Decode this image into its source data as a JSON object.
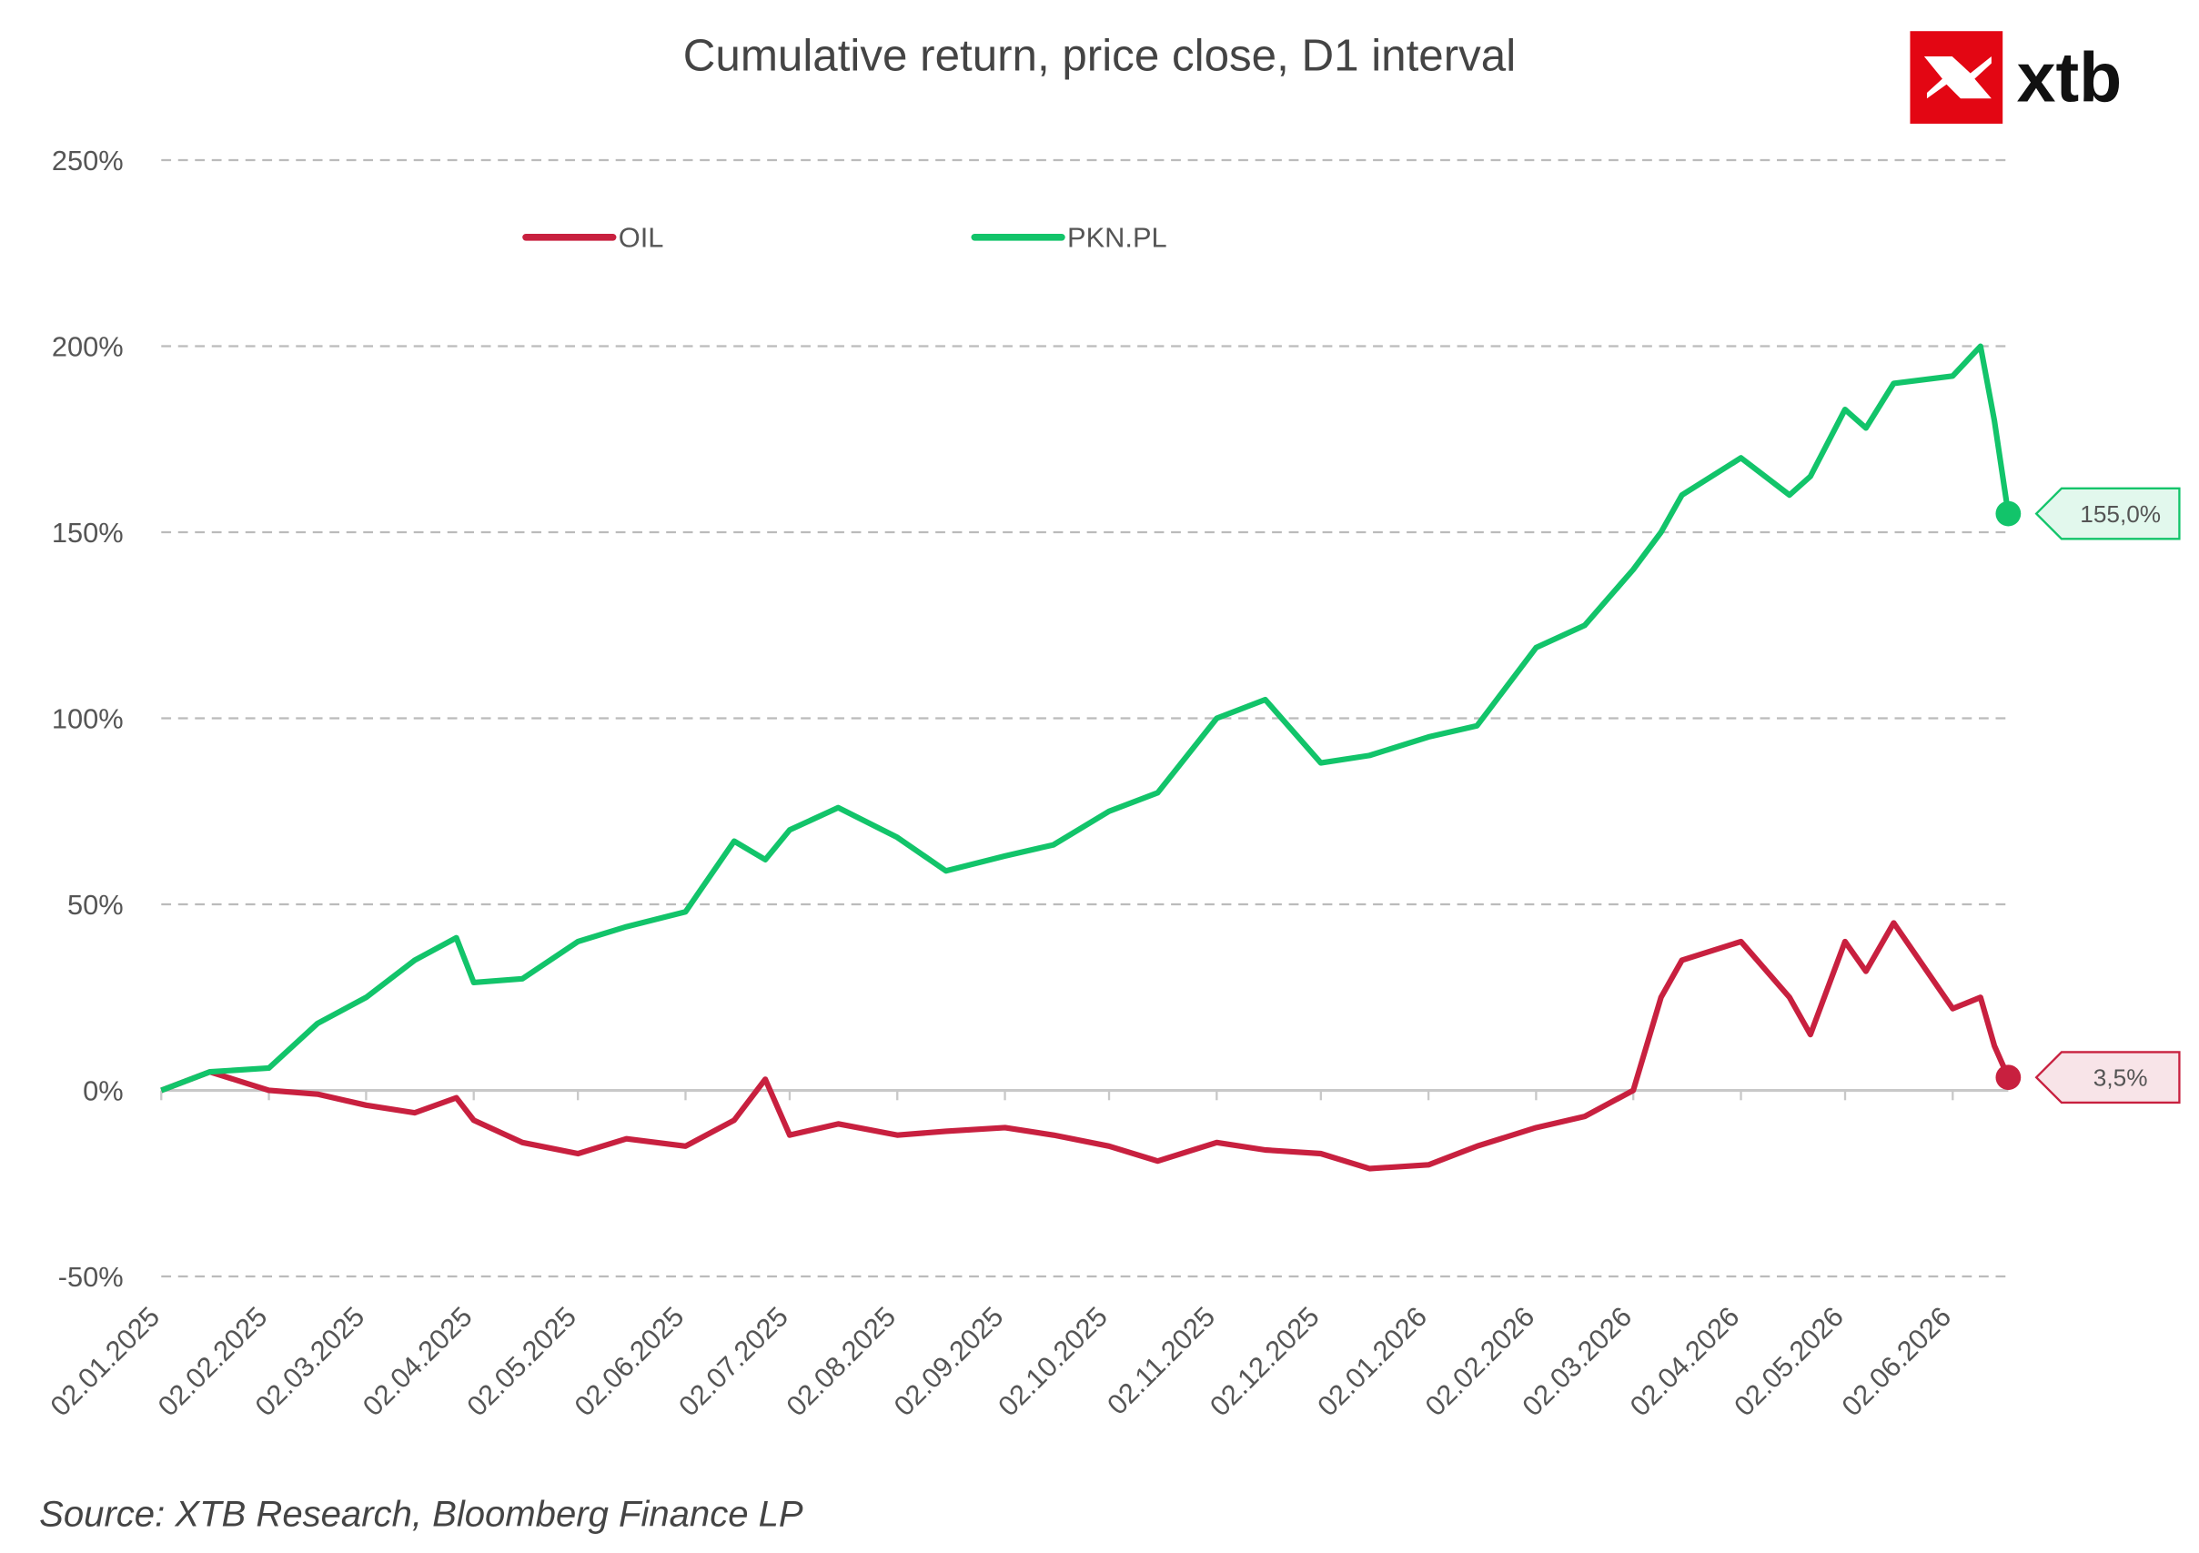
{
  "chart_data": {
    "type": "line",
    "title": "Cumulative return, price close, D1 interval",
    "source": "Source: XTB Research, Bloomberg Finance LP",
    "logo": "xtb",
    "legend": "top",
    "grid": true,
    "x": [
      "02.01.2025",
      "16.01.2025",
      "02.02.2025",
      "16.02.2025",
      "02.03.2025",
      "16.03.2025",
      "28.03.2025",
      "02.04.2025",
      "16.04.2025",
      "02.05.2025",
      "16.05.2025",
      "02.06.2025",
      "16.06.2025",
      "25.06.2025",
      "02.07.2025",
      "16.07.2025",
      "02.08.2025",
      "16.08.2025",
      "02.09.2025",
      "16.09.2025",
      "02.10.2025",
      "16.10.2025",
      "02.11.2025",
      "16.11.2025",
      "02.12.2025",
      "16.12.2025",
      "02.01.2026",
      "16.01.2026",
      "02.02.2026",
      "16.02.2026",
      "02.03.2026",
      "10.03.2026",
      "16.03.2026",
      "02.04.2026",
      "16.04.2026",
      "22.04.2026",
      "02.05.2026",
      "08.05.2026",
      "16.05.2026",
      "02.06.2026",
      "10.06.2026",
      "14.06.2026",
      "18.06.2026"
    ],
    "xlim": [
      "02.01.2025",
      "18.06.2026"
    ],
    "xticks": [
      "02.01.2025",
      "02.02.2025",
      "02.03.2025",
      "02.04.2025",
      "02.05.2025",
      "02.06.2025",
      "02.07.2025",
      "02.08.2025",
      "02.09.2025",
      "02.10.2025",
      "02.11.2025",
      "02.12.2025",
      "02.01.2026",
      "02.02.2026",
      "02.03.2026",
      "02.04.2026",
      "02.05.2026",
      "02.06.2026"
    ],
    "ylim": [
      -50,
      250
    ],
    "yticks": [
      {
        "value": -50,
        "label": "-50%"
      },
      {
        "value": 0,
        "label": "0%"
      },
      {
        "value": 50,
        "label": "50%"
      },
      {
        "value": 100,
        "label": "100%"
      },
      {
        "value": 150,
        "label": "150%"
      },
      {
        "value": 200,
        "label": "200%"
      },
      {
        "value": 250,
        "label": "250%"
      }
    ],
    "series": [
      {
        "name": "OIL",
        "color": "#c8203f",
        "values": [
          0,
          5,
          0,
          -1,
          -4,
          -6,
          -2,
          -8,
          -14,
          -17,
          -13,
          -15,
          -8,
          3,
          -12,
          -9,
          -12,
          -11,
          -10,
          -12,
          -15,
          -19,
          -14,
          -16,
          -17,
          -21,
          -20,
          -15,
          -10,
          -7,
          0,
          25,
          35,
          40,
          25,
          15,
          40,
          32,
          45,
          22,
          25,
          12,
          3.5
        ],
        "value_labels": [
          null,
          null,
          null,
          null,
          null,
          null,
          null,
          null,
          null,
          null,
          null,
          null,
          null,
          null,
          null,
          null,
          null,
          null,
          null,
          null,
          null,
          null,
          null,
          null,
          null,
          null,
          null,
          null,
          null,
          null,
          null,
          null,
          null,
          null,
          null,
          null,
          null,
          null,
          null,
          null,
          null,
          null,
          "3,5%"
        ]
      },
      {
        "name": "PKN.PL",
        "color": "#12c46a",
        "values": [
          0,
          5,
          6,
          18,
          25,
          35,
          41,
          29,
          30,
          40,
          44,
          48,
          67,
          62,
          70,
          76,
          68,
          59,
          63,
          66,
          75,
          80,
          100,
          105,
          88,
          90,
          95,
          98,
          119,
          125,
          140,
          150,
          160,
          170,
          160,
          165,
          183,
          178,
          190,
          192,
          200,
          180,
          155
        ],
        "value_labels": [
          null,
          null,
          null,
          null,
          null,
          null,
          null,
          null,
          null,
          null,
          null,
          null,
          null,
          null,
          null,
          null,
          null,
          null,
          null,
          null,
          null,
          null,
          null,
          null,
          null,
          null,
          null,
          null,
          null,
          null,
          null,
          null,
          null,
          null,
          null,
          null,
          null,
          null,
          null,
          null,
          null,
          null,
          "155,0%"
        ]
      }
    ]
  }
}
